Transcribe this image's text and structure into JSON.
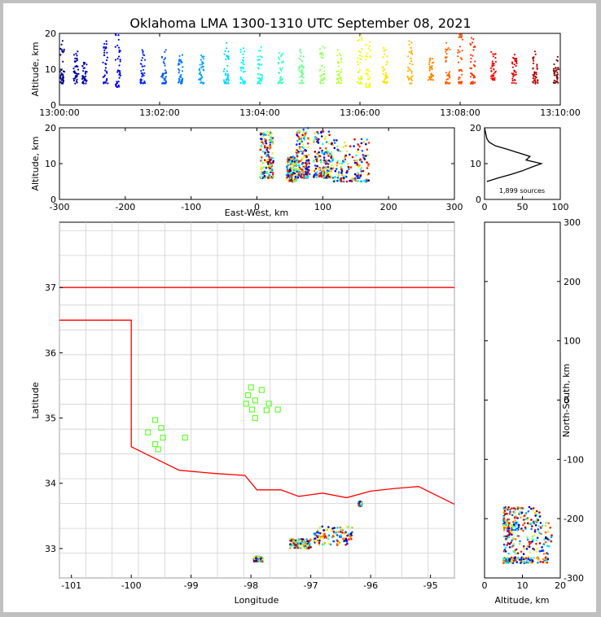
{
  "chart_data": [
    {
      "type": "scatter",
      "panel": "altitude-vs-time",
      "title": "Oklahoma LMA 1300-1310 UTC September 08, 2021",
      "ylabel": "Altitude, km",
      "xlabel": "",
      "xlim": [
        "13:00:00",
        "13:10:00"
      ],
      "ylim": [
        0,
        20
      ],
      "xticks": [
        "13:00:00",
        "13:02:00",
        "13:04:00",
        "13:06:00",
        "13:08:00",
        "13:10:00"
      ],
      "yticks": [
        0,
        10,
        20
      ],
      "color_by": "time",
      "colormap": "jet",
      "bursts": [
        {
          "t": "13:00:03",
          "alt_range": [
            6,
            18
          ]
        },
        {
          "t": "13:00:20",
          "alt_range": [
            6,
            15
          ]
        },
        {
          "t": "13:00:30",
          "alt_range": [
            6,
            12
          ]
        },
        {
          "t": "13:00:55",
          "alt_range": [
            6,
            18
          ]
        },
        {
          "t": "13:01:10",
          "alt_range": [
            5,
            20
          ]
        },
        {
          "t": "13:01:40",
          "alt_range": [
            6,
            16
          ]
        },
        {
          "t": "13:02:05",
          "alt_range": [
            6,
            16
          ]
        },
        {
          "t": "13:02:25",
          "alt_range": [
            6,
            14
          ]
        },
        {
          "t": "13:02:50",
          "alt_range": [
            6,
            14
          ]
        },
        {
          "t": "13:03:20",
          "alt_range": [
            6,
            18
          ]
        },
        {
          "t": "13:03:40",
          "alt_range": [
            6,
            17
          ]
        },
        {
          "t": "13:04:00",
          "alt_range": [
            6,
            17
          ]
        },
        {
          "t": "13:04:25",
          "alt_range": [
            6,
            15
          ]
        },
        {
          "t": "13:04:50",
          "alt_range": [
            6,
            16
          ]
        },
        {
          "t": "13:05:15",
          "alt_range": [
            6,
            17
          ]
        },
        {
          "t": "13:05:35",
          "alt_range": [
            6,
            16
          ]
        },
        {
          "t": "13:06:00",
          "alt_range": [
            6,
            20
          ]
        },
        {
          "t": "13:06:10",
          "alt_range": [
            5,
            18
          ]
        },
        {
          "t": "13:06:30",
          "alt_range": [
            6,
            16
          ]
        },
        {
          "t": "13:07:00",
          "alt_range": [
            6,
            20
          ]
        },
        {
          "t": "13:07:25",
          "alt_range": [
            7,
            14
          ]
        },
        {
          "t": "13:07:45",
          "alt_range": [
            6,
            18
          ]
        },
        {
          "t": "13:08:00",
          "alt_range": [
            6,
            20
          ]
        },
        {
          "t": "13:08:15",
          "alt_range": [
            6,
            20
          ]
        },
        {
          "t": "13:08:40",
          "alt_range": [
            7,
            15
          ]
        },
        {
          "t": "13:09:05",
          "alt_range": [
            6,
            15
          ]
        },
        {
          "t": "13:09:30",
          "alt_range": [
            6,
            15
          ]
        },
        {
          "t": "13:09:55",
          "alt_range": [
            6,
            14
          ]
        }
      ]
    },
    {
      "type": "scatter",
      "panel": "altitude-vs-east-west",
      "xlabel": "East-West, km",
      "ylabel": "Altitude, km",
      "xlim": [
        -300,
        300
      ],
      "ylim": [
        0,
        20
      ],
      "xticks": [
        -300,
        -200,
        -100,
        0,
        100,
        200,
        300
      ],
      "yticks": [
        0,
        10,
        20
      ],
      "clusters": [
        {
          "x_range": [
            5,
            25
          ],
          "alt_range": [
            6,
            19
          ]
        },
        {
          "x_range": [
            45,
            60
          ],
          "alt_range": [
            5,
            12
          ]
        },
        {
          "x_range": [
            60,
            80
          ],
          "alt_range": [
            6,
            20
          ]
        },
        {
          "x_range": [
            85,
            115
          ],
          "alt_range": [
            6,
            19
          ]
        },
        {
          "x_range": [
            115,
            170
          ],
          "alt_range": [
            5,
            17
          ]
        }
      ]
    },
    {
      "type": "line",
      "panel": "altitude-histogram",
      "xlim": [
        0,
        100
      ],
      "ylim": [
        0,
        20
      ],
      "xticks": [
        0,
        50,
        100
      ],
      "yticks": [
        0,
        10,
        20
      ],
      "annotation": "1,899 sources",
      "profile": [
        {
          "alt": 5,
          "count": 3
        },
        {
          "alt": 6,
          "count": 18
        },
        {
          "alt": 7,
          "count": 35
        },
        {
          "alt": 8,
          "count": 50
        },
        {
          "alt": 9,
          "count": 62
        },
        {
          "alt": 10,
          "count": 75
        },
        {
          "alt": 11,
          "count": 55
        },
        {
          "alt": 12,
          "count": 60
        },
        {
          "alt": 13,
          "count": 45
        },
        {
          "alt": 14,
          "count": 30
        },
        {
          "alt": 15,
          "count": 14
        },
        {
          "alt": 16,
          "count": 6
        },
        {
          "alt": 17,
          "count": 3
        },
        {
          "alt": 18,
          "count": 2
        },
        {
          "alt": 19,
          "count": 1
        },
        {
          "alt": 20,
          "count": 0
        }
      ]
    },
    {
      "type": "scatter",
      "panel": "plan-view-map",
      "xlabel": "Longitude",
      "ylabel": "Latitude",
      "xlim": [
        -101.2,
        -94.6
      ],
      "ylim": [
        32.55,
        38.0
      ],
      "xticks": [
        -101,
        -100,
        -99,
        -98,
        -97,
        -96,
        -95
      ],
      "yticks": [
        33,
        34,
        35,
        36,
        37
      ],
      "stations_color": "#66ff33",
      "stations": [
        [
          -99.6,
          34.97
        ],
        [
          -99.5,
          34.85
        ],
        [
          -99.72,
          34.78
        ],
        [
          -99.47,
          34.7
        ],
        [
          -99.6,
          34.6
        ],
        [
          -99.55,
          34.52
        ],
        [
          -99.1,
          34.7
        ],
        [
          -98.0,
          35.47
        ],
        [
          -98.05,
          35.35
        ],
        [
          -97.82,
          35.43
        ],
        [
          -97.93,
          35.27
        ],
        [
          -98.08,
          35.22
        ],
        [
          -97.7,
          35.22
        ],
        [
          -97.98,
          35.13
        ],
        [
          -97.74,
          35.12
        ],
        [
          -97.55,
          35.13
        ],
        [
          -97.93,
          35.0
        ]
      ],
      "source_clusters": [
        {
          "lon_range": [
            -97.95,
            -97.8
          ],
          "lat_range": [
            32.8,
            32.88
          ]
        },
        {
          "lon_range": [
            -97.35,
            -97.0
          ],
          "lat_range": [
            33.0,
            33.15
          ]
        },
        {
          "lon_range": [
            -96.95,
            -96.3
          ],
          "lat_range": [
            33.05,
            33.35
          ]
        },
        {
          "lon_range": [
            -96.2,
            -96.15
          ],
          "lat_range": [
            33.65,
            33.72
          ]
        }
      ],
      "boundary_color": "#ff0000"
    },
    {
      "type": "scatter",
      "panel": "north-south-vs-altitude",
      "xlabel": "Altitude, km",
      "ylabel": "North-South, km",
      "xlim": [
        0,
        20
      ],
      "ylim": [
        -300,
        300
      ],
      "xticks": [
        0,
        10,
        20
      ],
      "yticks": [
        -300,
        -200,
        -100,
        0,
        100,
        200,
        300
      ],
      "clusters": [
        {
          "alt_range": [
            5,
            15
          ],
          "y_range": [
            -220,
            -180
          ]
        },
        {
          "alt_range": [
            5,
            18
          ],
          "y_range": [
            -260,
            -205
          ]
        },
        {
          "alt_range": [
            5,
            17
          ],
          "y_range": [
            -275,
            -265
          ]
        }
      ]
    }
  ]
}
